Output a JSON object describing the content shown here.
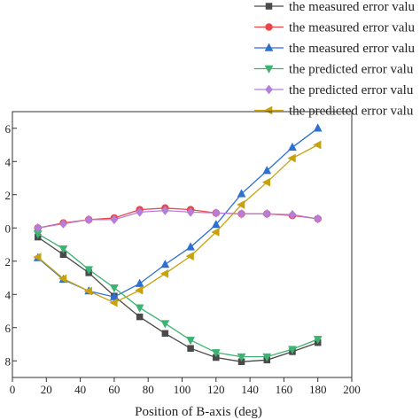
{
  "chart_data": {
    "type": "line",
    "title": "",
    "xlabel": "Position of B-axis (deg)",
    "ylabel": "",
    "xlim": [
      0,
      200
    ],
    "ylim": [
      -9,
      7
    ],
    "x_ticks": [
      0,
      20,
      40,
      60,
      80,
      100,
      120,
      140,
      160,
      180,
      200
    ],
    "y_ticks": [
      -8,
      -6,
      -4,
      -2,
      0,
      2,
      4,
      6
    ],
    "y_tick_labels": [
      "8",
      "6",
      "4",
      "2",
      "0",
      "2",
      "4",
      "6"
    ],
    "grid": false,
    "legend_position": "top-right",
    "x": [
      15,
      30,
      45,
      60,
      75,
      90,
      105,
      120,
      135,
      150,
      165,
      180
    ],
    "series": [
      {
        "name": "the measured error valu",
        "color": "#4a4a4a",
        "marker": "square",
        "values": [
          -0.55,
          -1.6,
          -2.7,
          -4.1,
          -5.35,
          -6.35,
          -7.25,
          -7.8,
          -8.05,
          -7.95,
          -7.45,
          -6.9
        ]
      },
      {
        "name": "the measured error valu",
        "color": "#e8474a",
        "marker": "circle",
        "values": [
          0.0,
          0.3,
          0.5,
          0.6,
          1.1,
          1.2,
          1.1,
          0.9,
          0.85,
          0.85,
          0.75,
          0.55
        ]
      },
      {
        "name": "the measured error valu",
        "color": "#2e6fd4",
        "marker": "triangle-up",
        "values": [
          -1.8,
          -3.1,
          -3.8,
          -4.15,
          -3.35,
          -2.2,
          -1.15,
          0.2,
          2.05,
          3.45,
          4.85,
          6.0
        ]
      },
      {
        "name": "the predicted error valu",
        "color": "#3cb371",
        "marker": "triangle-down",
        "values": [
          -0.35,
          -1.25,
          -2.5,
          -3.6,
          -4.8,
          -5.75,
          -6.75,
          -7.5,
          -7.75,
          -7.75,
          -7.3,
          -6.7
        ]
      },
      {
        "name": "the predicted error valu",
        "color": "#b57edc",
        "marker": "diamond",
        "values": [
          0.0,
          0.25,
          0.5,
          0.5,
          0.95,
          1.05,
          0.95,
          0.9,
          0.85,
          0.85,
          0.8,
          0.55
        ]
      },
      {
        "name": "the predicted error valu",
        "color": "#c8a20e",
        "marker": "triangle-left",
        "values": [
          -1.75,
          -3.05,
          -3.8,
          -4.5,
          -3.75,
          -2.75,
          -1.7,
          -0.25,
          1.4,
          2.75,
          4.2,
          5.0
        ]
      }
    ]
  }
}
